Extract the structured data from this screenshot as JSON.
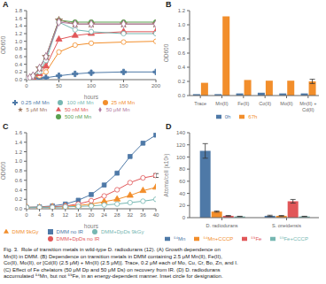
{
  "chart_data": [
    {
      "type": "line",
      "title": "A",
      "xlabel": "hours",
      "ylabel": "OD600",
      "x": [
        0,
        5,
        10,
        20,
        30,
        50,
        75,
        100,
        150,
        200
      ],
      "xlim": [
        0,
        200
      ],
      "xticks": [
        0,
        50,
        100,
        150,
        200
      ],
      "ylim": [
        0,
        1.8
      ],
      "yticks": [
        {
          "value": 0,
          "label": "0.0"
        },
        0.2,
        0.4,
        0.6,
        0.8,
        {
          "value": 1,
          "label": "1.0"
        },
        1.2,
        1.4,
        1.6,
        1.8
      ],
      "legend": "bottom",
      "series": [
        {
          "name": "0.25 nM Mn",
          "color": "#4e79a7",
          "marker": "plus",
          "values": [
            0.02,
            0.02,
            0.03,
            0.04,
            0.05,
            0.1,
            0.15,
            0.18,
            0.2,
            0.2
          ]
        },
        {
          "name": "25 nM Mn",
          "color": "#f28e2b",
          "marker": "open_circle",
          "values": [
            0.02,
            0.03,
            0.05,
            0.1,
            0.2,
            0.72,
            0.9,
            0.95,
            0.98,
            1.0
          ]
        },
        {
          "name": "50 nM Mn",
          "color": "#e15759",
          "marker": "triangle",
          "values": [
            0.02,
            0.03,
            0.06,
            0.15,
            0.35,
            1.05,
            1.15,
            1.2,
            1.25,
            1.25
          ]
        },
        {
          "name": "100 nM Mn",
          "color": "#76b7b2",
          "marker": "open_circle",
          "values": [
            0.02,
            0.04,
            0.08,
            0.2,
            0.5,
            1.5,
            1.3,
            1.25,
            1.2,
            1.2
          ]
        },
        {
          "name": "500 nM Mn",
          "color": "#59a14f",
          "marker": "circle",
          "values": [
            0.02,
            0.05,
            0.1,
            0.3,
            0.6,
            1.55,
            1.5,
            1.5,
            1.5,
            1.5
          ]
        },
        {
          "name": "5 μM Mn",
          "color": "#9c755f",
          "marker": "star",
          "values": [
            0.02,
            0.05,
            0.1,
            0.3,
            0.6,
            1.55,
            1.45,
            1.45,
            1.45,
            1.45
          ]
        },
        {
          "name": "50 μM Mn",
          "color": "#b07aa1",
          "marker": "open_diamond",
          "values": [
            0.02,
            0.05,
            0.1,
            0.3,
            0.6,
            1.5,
            1.45,
            1.45,
            1.45,
            1.45
          ]
        }
      ]
    },
    {
      "type": "bar",
      "title": "B",
      "ylabel": "OD600",
      "categories": [
        "Trace",
        "Mn(II)",
        "Fe(II)",
        "Co(II)",
        "Mo(II)",
        "Mn(II) +\nCd(II)"
      ],
      "ylim": [
        0,
        1.2
      ],
      "yticks": [
        {
          "value": 0,
          "label": "0.0"
        },
        0.2,
        0.4,
        0.6,
        0.8,
        {
          "value": 1,
          "label": "1.0"
        },
        1.2
      ],
      "legend": "bottom",
      "series": [
        {
          "name": "0h",
          "color": "#4e79a7",
          "values": [
            0.02,
            0.02,
            0.03,
            0.04,
            0.03,
            0.03
          ]
        },
        {
          "name": "67h",
          "color": "#f28e2b",
          "values": [
            0.18,
            1.12,
            0.22,
            0.21,
            0.21,
            0.2
          ],
          "errors": [
            null,
            null,
            null,
            null,
            null,
            0.03
          ]
        }
      ]
    },
    {
      "type": "line",
      "title": "C",
      "xlabel": "hours",
      "ylabel": "OD600",
      "x": [
        0,
        4,
        8,
        12,
        16,
        20,
        24,
        28,
        32,
        36,
        40
      ],
      "xlim": [
        0,
        40
      ],
      "xticks": [
        0,
        4,
        8,
        12,
        16,
        20,
        24,
        28,
        32,
        36,
        40
      ],
      "ylim": [
        0,
        1.6
      ],
      "yticks": [
        {
          "value": 0,
          "label": "0.0"
        },
        0.2,
        0.4,
        0.6,
        0.8,
        {
          "value": 1,
          "label": "1.0"
        },
        1.2,
        1.4,
        1.6
      ],
      "legend": "bottom",
      "series": [
        {
          "name": "DMM no IR",
          "color": "#4e79a7",
          "marker": "square",
          "values": [
            0.03,
            0.04,
            0.06,
            0.1,
            0.18,
            0.3,
            0.5,
            0.75,
            1.1,
            1.38,
            1.55
          ]
        },
        {
          "name": "DMM 9kGy",
          "color": "#f28e2b",
          "marker": "triangle",
          "values": [
            0.03,
            0.03,
            0.04,
            0.05,
            0.07,
            0.1,
            0.15,
            0.2,
            0.28,
            0.38,
            0.45
          ]
        },
        {
          "name": "DMM+DpDs no IR",
          "color": "#e15759",
          "marker": "open_circle",
          "values": [
            0.03,
            0.03,
            0.04,
            0.06,
            0.1,
            0.17,
            0.27,
            0.4,
            0.55,
            0.65,
            0.7
          ],
          "errors": [
            null,
            null,
            null,
            null,
            null,
            null,
            null,
            null,
            null,
            null,
            0.04
          ]
        },
        {
          "name": "DMM+DpDs 9kGy",
          "color": "#76b7b2",
          "marker": "open_circle",
          "values": [
            0.03,
            0.03,
            0.03,
            0.04,
            0.05,
            0.06,
            0.08,
            0.1,
            0.13,
            0.16,
            0.2
          ]
        }
      ]
    },
    {
      "type": "bar",
      "title": "D",
      "ylabel": "Atoms/cell (x10³)",
      "categories": [
        "D. radiodurans",
        "S. oneidensis"
      ],
      "ylim": [
        0,
        140
      ],
      "yticks": [
        0,
        20,
        40,
        60,
        80,
        100,
        120,
        140
      ],
      "legend": "bottom",
      "series": [
        {
          "name": "⁵⁴Mn",
          "color": "#4e79a7",
          "values": [
            110,
            3
          ],
          "errors": [
            12,
            1
          ]
        },
        {
          "name": "⁵⁴Mn+CCCP",
          "color": "#f28e2b",
          "values": [
            10,
            3
          ],
          "errors": [
            1,
            0.5
          ]
        },
        {
          "name": "⁵⁹Fe",
          "color": "#e15759",
          "values": [
            3,
            27
          ],
          "errors": [
            0.5,
            3
          ]
        },
        {
          "name": "⁵⁹Fe+CCCP",
          "color": "#76b7b2",
          "values": [
            2,
            2
          ],
          "errors": [
            0.3,
            0.3
          ]
        }
      ]
    }
  ],
  "caption": "Fig. 3.  Role of transition metals in wild-type D. radiodurans (12). (A) Growth dependence on\nMn(II) in DMM. (B) Dependence on transition metals in DMM containing 2.5 μM Mn(II), Fe(II),\nCo(II), Mo(II), or [Cd(II) (2.5 μM) + Mn(II) (2.5 μM)]. Trace, 0.2 μM each of Mo, Cu, Cr, Bo, Zn, and I.\n(C) Effect of Fe chelators (50 μM Dp and 50 μM Ds) on recovery from IR. (D) D. radiodurans\naccumulated ⁵⁴Mn, but not ⁵⁹Fe, in an energy-dependent manner. Inset circle for designation."
}
